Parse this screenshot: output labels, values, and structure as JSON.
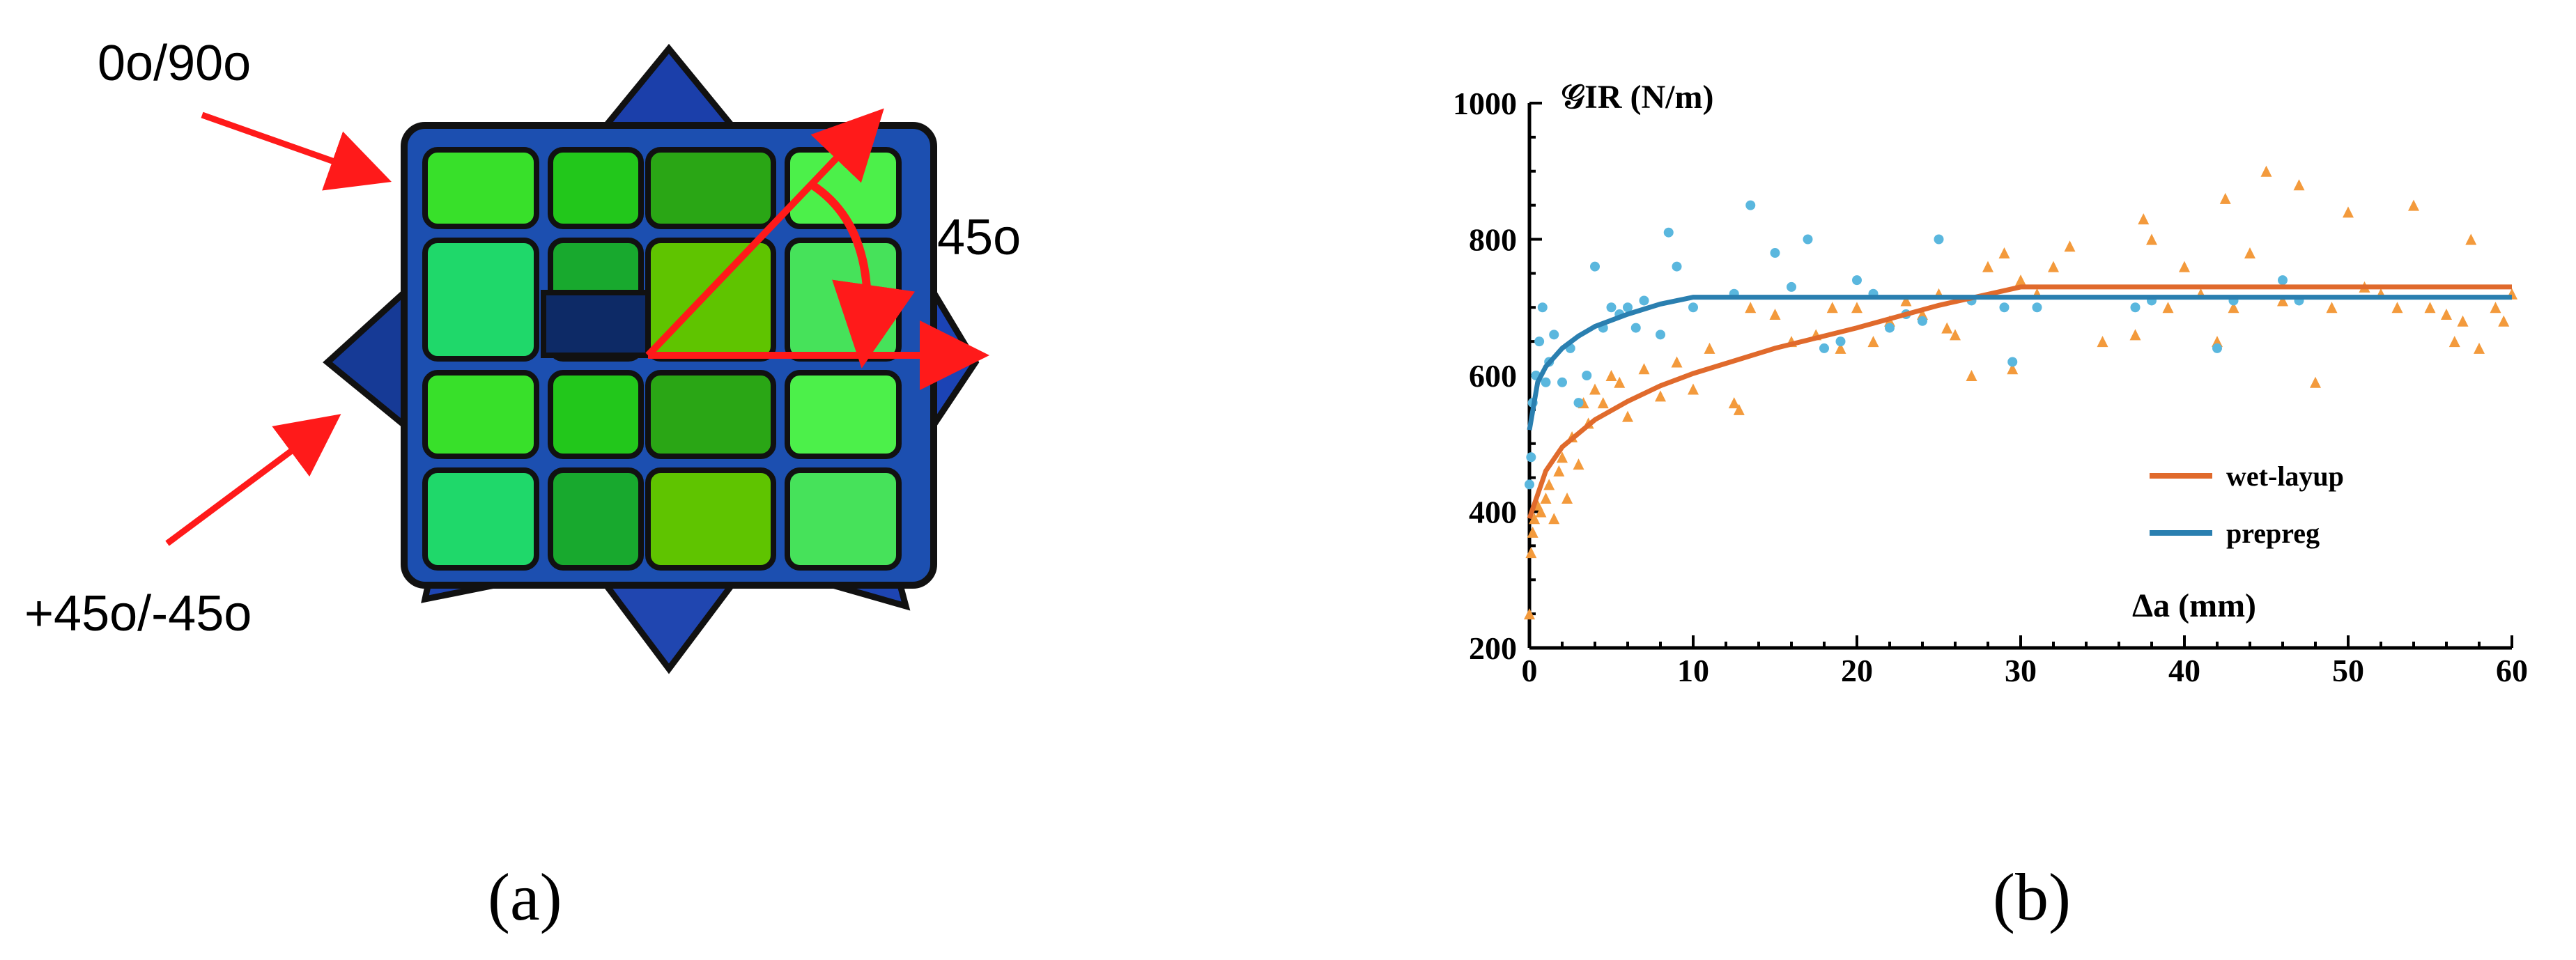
{
  "panel_a": {
    "label_0_90": "0o/90o",
    "label_45": "45o",
    "label_pm45": "+45o/-45o",
    "caption": "(a)",
    "colors": {
      "outline": "#111111",
      "ring": "#1c4fb0",
      "star_tip": "#173ea0",
      "arrow": "#ff1a1a",
      "tow_greens": [
        "#38e02a",
        "#22c71b",
        "#2aa615",
        "#4cf04a",
        "#1fd86a",
        "#18a92e",
        "#5fc400",
        "#46e25a"
      ]
    }
  },
  "panel_b": {
    "caption": "(b)",
    "colors": {
      "wet_layup": "#e06a2c",
      "prepreg": "#2a7fb0",
      "wet_markers": "#f39a3c",
      "prepreg_markers": "#5ab7de"
    }
  },
  "chart_data": {
    "type": "scatter",
    "ylabel": "𝒢IR (N/m)",
    "xlabel": "Δa (mm)",
    "xlim": [
      0,
      60
    ],
    "ylim": [
      200,
      1000
    ],
    "xticks": [
      "0",
      "10",
      "20",
      "30",
      "40",
      "50",
      "60"
    ],
    "yticks": [
      "200",
      "400",
      "600",
      "800",
      "1000"
    ],
    "legend_position": "right",
    "grid": false,
    "series": [
      {
        "name": "wet-layup",
        "marker": "triangle",
        "points": [
          [
            0,
            250
          ],
          [
            0.1,
            340
          ],
          [
            0.2,
            370
          ],
          [
            0.3,
            390
          ],
          [
            0.5,
            410
          ],
          [
            0.7,
            400
          ],
          [
            1,
            420
          ],
          [
            1.2,
            440
          ],
          [
            1.5,
            390
          ],
          [
            1.8,
            460
          ],
          [
            2,
            480
          ],
          [
            2.3,
            420
          ],
          [
            2.6,
            510
          ],
          [
            3,
            470
          ],
          [
            3.3,
            560
          ],
          [
            3.6,
            530
          ],
          [
            4,
            580
          ],
          [
            4.5,
            560
          ],
          [
            5,
            600
          ],
          [
            5.5,
            590
          ],
          [
            6,
            540
          ],
          [
            7,
            610
          ],
          [
            8,
            570
          ],
          [
            9,
            620
          ],
          [
            10,
            580
          ],
          [
            11,
            640
          ],
          [
            12.5,
            560
          ],
          [
            12.8,
            550
          ],
          [
            13.5,
            700
          ],
          [
            15,
            690
          ],
          [
            16,
            650
          ],
          [
            17.5,
            660
          ],
          [
            18.5,
            700
          ],
          [
            19,
            640
          ],
          [
            20,
            700
          ],
          [
            21,
            650
          ],
          [
            22,
            680
          ],
          [
            23,
            710
          ],
          [
            24,
            690
          ],
          [
            25,
            720
          ],
          [
            25.5,
            670
          ],
          [
            26,
            660
          ],
          [
            27,
            600
          ],
          [
            28,
            760
          ],
          [
            29,
            780
          ],
          [
            29.5,
            610
          ],
          [
            30,
            740
          ],
          [
            31,
            720
          ],
          [
            32,
            760
          ],
          [
            33,
            790
          ],
          [
            35,
            650
          ],
          [
            37,
            660
          ],
          [
            37.5,
            830
          ],
          [
            38,
            800
          ],
          [
            39,
            700
          ],
          [
            40,
            760
          ],
          [
            41,
            720
          ],
          [
            42,
            650
          ],
          [
            42.5,
            860
          ],
          [
            43,
            700
          ],
          [
            44,
            780
          ],
          [
            45,
            900
          ],
          [
            46,
            710
          ],
          [
            47,
            880
          ],
          [
            48,
            590
          ],
          [
            49,
            700
          ],
          [
            50,
            840
          ],
          [
            51,
            730
          ],
          [
            52,
            720
          ],
          [
            53,
            700
          ],
          [
            54,
            850
          ],
          [
            55,
            700
          ],
          [
            56,
            690
          ],
          [
            56.5,
            650
          ],
          [
            57,
            680
          ],
          [
            57.5,
            800
          ],
          [
            58,
            640
          ],
          [
            59,
            700
          ],
          [
            59.5,
            680
          ],
          [
            60,
            720
          ]
        ],
        "fit": [
          [
            0,
            390
          ],
          [
            1,
            460
          ],
          [
            2,
            495
          ],
          [
            4,
            535
          ],
          [
            6,
            562
          ],
          [
            8,
            585
          ],
          [
            10,
            603
          ],
          [
            15,
            640
          ],
          [
            20,
            670
          ],
          [
            25,
            703
          ],
          [
            30,
            730
          ],
          [
            40,
            730
          ],
          [
            50,
            730
          ],
          [
            60,
            730
          ]
        ]
      },
      {
        "name": "prepreg",
        "marker": "circle",
        "points": [
          [
            0,
            440
          ],
          [
            0.1,
            480
          ],
          [
            0.2,
            560
          ],
          [
            0.4,
            600
          ],
          [
            0.6,
            650
          ],
          [
            0.8,
            700
          ],
          [
            1,
            590
          ],
          [
            1.2,
            620
          ],
          [
            1.5,
            660
          ],
          [
            2,
            590
          ],
          [
            2.5,
            640
          ],
          [
            3,
            560
          ],
          [
            3.5,
            600
          ],
          [
            4,
            760
          ],
          [
            4.5,
            670
          ],
          [
            5,
            700
          ],
          [
            5.5,
            690
          ],
          [
            6,
            700
          ],
          [
            6.5,
            670
          ],
          [
            7,
            710
          ],
          [
            8,
            660
          ],
          [
            8.5,
            810
          ],
          [
            9,
            760
          ],
          [
            10,
            700
          ],
          [
            12.5,
            720
          ],
          [
            13.5,
            850
          ],
          [
            15,
            780
          ],
          [
            16,
            730
          ],
          [
            17,
            800
          ],
          [
            18,
            640
          ],
          [
            19,
            650
          ],
          [
            20,
            740
          ],
          [
            21,
            720
          ],
          [
            22,
            670
          ],
          [
            23,
            690
          ],
          [
            24,
            680
          ],
          [
            25,
            800
          ],
          [
            27,
            710
          ],
          [
            29,
            700
          ],
          [
            29.5,
            620
          ],
          [
            31,
            700
          ],
          [
            37,
            700
          ],
          [
            38,
            710
          ],
          [
            42,
            640
          ],
          [
            43,
            710
          ],
          [
            46,
            740
          ],
          [
            47,
            710
          ]
        ],
        "fit": [
          [
            0,
            520
          ],
          [
            0.5,
            590
          ],
          [
            1,
            613
          ],
          [
            2,
            640
          ],
          [
            3,
            658
          ],
          [
            4,
            672
          ],
          [
            6,
            690
          ],
          [
            8,
            705
          ],
          [
            10,
            715
          ],
          [
            20,
            715
          ],
          [
            30,
            715
          ],
          [
            40,
            715
          ],
          [
            50,
            715
          ],
          [
            60,
            715
          ]
        ]
      }
    ]
  }
}
